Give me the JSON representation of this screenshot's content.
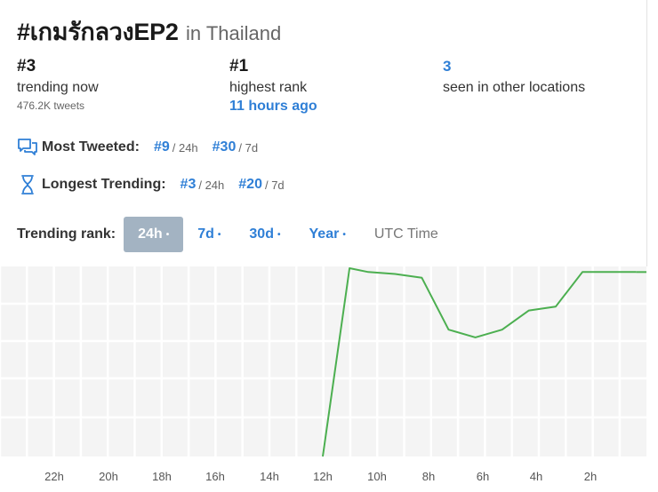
{
  "header": {
    "hashtag": "#เกมรักลวงEP2",
    "location": "in Thailand"
  },
  "stats": {
    "trending_now": {
      "value": "#3",
      "label": "trending now",
      "sub": "476.2K tweets"
    },
    "highest_rank": {
      "value": "#1",
      "label": "highest rank",
      "time": "11 hours ago"
    },
    "other_locations": {
      "value": "3",
      "label": "seen in other locations"
    }
  },
  "most_tweeted": {
    "label": "Most Tweeted:",
    "rank_24h": "#9",
    "period_24h": "/ 24h",
    "rank_7d": "#30",
    "period_7d": "/ 7d"
  },
  "longest_trending": {
    "label": "Longest Trending:",
    "rank_24h": "#3",
    "period_24h": "/ 24h",
    "rank_7d": "#20",
    "period_7d": "/ 7d"
  },
  "trending_rank": {
    "label": "Trending rank:",
    "tabs": [
      {
        "label": "24h",
        "dot": "•"
      },
      {
        "label": "7d",
        "dot": "•"
      },
      {
        "label": "30d",
        "dot": "•"
      },
      {
        "label": "Year",
        "dot": "•"
      }
    ],
    "utc": "UTC Time"
  },
  "colors": {
    "accent": "#2f7fd6",
    "line": "#4caf50",
    "active_tab": "#a3b3c2"
  },
  "icons": {
    "most_tweeted": "chat-bubbles-icon",
    "longest_trending": "hourglass-icon"
  },
  "chart_data": {
    "type": "line",
    "title": "",
    "xlabel": "",
    "ylabel": "",
    "x_ticks": [
      "22h",
      "20h",
      "18h",
      "16h",
      "14h",
      "12h",
      "10h",
      "8h",
      "6h",
      "4h",
      "2h"
    ],
    "ylim": [
      1,
      50
    ],
    "y_inverted": true,
    "grid": true,
    "series": [
      {
        "x": [
          12,
          11,
          10.3,
          9.3,
          8.3,
          7.3,
          6.3,
          5.3,
          4.3,
          3.3,
          2.3,
          1.3,
          0.3
        ],
        "values": [
          50,
          1,
          2,
          2.5,
          3.5,
          17,
          19,
          17,
          12,
          11,
          2,
          2,
          2
        ]
      }
    ]
  }
}
